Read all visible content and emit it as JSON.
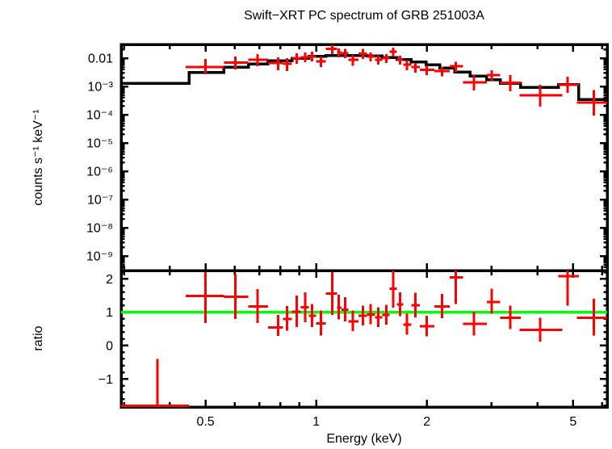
{
  "chart_data": {
    "type": "scatter",
    "title": "Swift−XRT PC spectrum of GRB 251003A",
    "xlabel": "Energy (keV)",
    "xscale": "log",
    "xlim": [
      0.2946,
      6.19
    ],
    "xticks": [
      {
        "value": 0.5,
        "label": "0.5"
      },
      {
        "value": 1,
        "label": "1"
      },
      {
        "value": 2,
        "label": "2"
      },
      {
        "value": 5,
        "label": "5"
      }
    ],
    "xticks_minor": [
      0.3,
      0.4,
      0.6,
      0.7,
      0.8,
      0.9,
      3,
      4,
      6
    ],
    "colors": {
      "data": "#ff0000",
      "model": "#000000",
      "reference_line": "#00ff00",
      "frame": "#000000",
      "background": "#ffffff"
    },
    "panels": [
      {
        "name": "spectrum",
        "ylabel": "counts s⁻¹ keV⁻¹",
        "yscale": "log",
        "ylim": [
          3.06e-10,
          0.0306
        ],
        "yticks": [
          {
            "value": 0.01,
            "label": "0.01"
          },
          {
            "value": 0.001,
            "label": "10⁻³"
          },
          {
            "value": 0.0001,
            "label": "10⁻⁴"
          },
          {
            "value": 1e-05,
            "label": "10⁻⁵"
          },
          {
            "value": 1e-06,
            "label": "10⁻⁶"
          },
          {
            "value": 1e-07,
            "label": "10⁻⁷"
          },
          {
            "value": 1e-08,
            "label": "10⁻⁸"
          },
          {
            "value": 1e-09,
            "label": "10⁻⁹"
          }
        ],
        "model_steps": [
          [
            0.2946,
            0.451,
            0.0013
          ],
          [
            0.451,
            0.561,
            0.0031
          ],
          [
            0.561,
            0.654,
            0.0048
          ],
          [
            0.654,
            0.739,
            0.0063
          ],
          [
            0.739,
            0.859,
            0.0082
          ],
          [
            0.859,
            0.955,
            0.01
          ],
          [
            0.955,
            1.063,
            0.0115
          ],
          [
            1.063,
            1.375,
            0.0125
          ],
          [
            1.375,
            1.513,
            0.0118
          ],
          [
            1.513,
            1.659,
            0.0105
          ],
          [
            1.659,
            1.814,
            0.009
          ],
          [
            1.814,
            1.99,
            0.0073
          ],
          [
            1.99,
            2.17,
            0.0058
          ],
          [
            2.17,
            2.38,
            0.0044
          ],
          [
            2.38,
            2.62,
            0.0032
          ],
          [
            2.62,
            2.91,
            0.0023
          ],
          [
            2.91,
            3.17,
            0.0017
          ],
          [
            3.17,
            3.6,
            0.0013
          ],
          [
            3.6,
            4.56,
            0.00093
          ],
          [
            4.56,
            5.18,
            0.00115
          ],
          [
            5.18,
            6.19,
            0.00034
          ]
        ],
        "points": [
          [
            0.5,
            0.442,
            0.561,
            0.0049,
            0.0027,
            0.0093
          ],
          [
            0.603,
            0.561,
            0.654,
            0.0069,
            0.004,
            0.0114
          ],
          [
            0.693,
            0.654,
            0.739,
            0.0087,
            0.0052,
            0.014
          ],
          [
            0.788,
            0.739,
            0.813,
            0.0067,
            0.0037,
            0.0107
          ],
          [
            0.834,
            0.813,
            0.859,
            0.0063,
            0.0035,
            0.01
          ],
          [
            0.886,
            0.859,
            0.908,
            0.01,
            0.0063,
            0.0148
          ],
          [
            0.934,
            0.908,
            0.955,
            0.0107,
            0.0072,
            0.0158
          ],
          [
            0.975,
            0.955,
            1.0,
            0.0114,
            0.0077,
            0.017
          ],
          [
            1.031,
            1.0,
            1.063,
            0.0077,
            0.0049,
            0.0113
          ],
          [
            1.107,
            1.063,
            1.141,
            0.021,
            0.014,
            0.03
          ],
          [
            1.152,
            1.141,
            1.173,
            0.0158,
            0.0107,
            0.022
          ],
          [
            1.2,
            1.173,
            1.225,
            0.0148,
            0.01,
            0.021
          ],
          [
            1.257,
            1.225,
            1.302,
            0.0087,
            0.0054,
            0.013
          ],
          [
            1.34,
            1.302,
            1.375,
            0.0143,
            0.0094,
            0.021
          ],
          [
            1.405,
            1.375,
            1.446,
            0.0114,
            0.0077,
            0.016
          ],
          [
            1.476,
            1.446,
            1.513,
            0.0087,
            0.0059,
            0.0125
          ],
          [
            1.55,
            1.513,
            1.585,
            0.01,
            0.0067,
            0.014
          ],
          [
            1.62,
            1.585,
            1.659,
            0.017,
            0.0114,
            0.0236
          ],
          [
            1.69,
            1.659,
            1.727,
            0.0087,
            0.0059,
            0.012
          ],
          [
            1.765,
            1.727,
            1.814,
            0.0059,
            0.0037,
            0.0082
          ],
          [
            1.86,
            1.814,
            1.915,
            0.0049,
            0.0031,
            0.0068
          ],
          [
            2.0,
            1.915,
            2.095,
            0.0039,
            0.0025,
            0.0055
          ],
          [
            2.2,
            2.095,
            2.31,
            0.0035,
            0.0023,
            0.005
          ],
          [
            2.4,
            2.31,
            2.51,
            0.0052,
            0.0033,
            0.0074
          ],
          [
            2.69,
            2.51,
            2.91,
            0.0014,
            0.00072,
            0.0025
          ],
          [
            3.0,
            2.91,
            3.17,
            0.0025,
            0.00158,
            0.0037
          ],
          [
            3.37,
            3.17,
            3.6,
            0.00134,
            0.00067,
            0.0025
          ],
          [
            4.07,
            3.58,
            4.68,
            0.00049,
            0.00019,
            0.00115
          ],
          [
            4.83,
            4.56,
            5.18,
            0.00115,
            0.00059,
            0.0022
          ],
          [
            5.69,
            5.12,
            6.19,
            0.00027,
            9.3e-05,
            0.00074
          ]
        ]
      },
      {
        "name": "ratio",
        "ylabel": "ratio",
        "yscale": "linear",
        "ylim": [
          -1.84,
          2.25
        ],
        "yticks": [
          {
            "value": 2,
            "label": "2"
          },
          {
            "value": 1,
            "label": "1"
          },
          {
            "value": 0,
            "label": "0"
          },
          {
            "value": -1,
            "label": "−1"
          }
        ],
        "ytick_minor_step": 0.2,
        "reference_line_y": 1,
        "points": [
          [
            0.37,
            0.2946,
            0.451,
            -1.8,
            -1.84,
            -0.4
          ],
          [
            0.5,
            0.442,
            0.561,
            1.49,
            0.68,
            2.2
          ],
          [
            0.603,
            0.561,
            0.654,
            1.46,
            0.8,
            2.15
          ],
          [
            0.693,
            0.654,
            0.739,
            1.17,
            0.68,
            1.69
          ],
          [
            0.788,
            0.739,
            0.813,
            0.54,
            0.29,
            0.92
          ],
          [
            0.834,
            0.813,
            0.859,
            0.8,
            0.45,
            1.18
          ],
          [
            0.886,
            0.859,
            0.908,
            1.02,
            0.56,
            1.5
          ],
          [
            0.934,
            0.908,
            0.955,
            1.15,
            0.7,
            1.6
          ],
          [
            0.975,
            0.955,
            1.0,
            0.9,
            0.55,
            1.25
          ],
          [
            1.031,
            1.0,
            1.063,
            0.66,
            0.3,
            1.05
          ],
          [
            1.107,
            1.063,
            1.141,
            1.56,
            0.92,
            2.2
          ],
          [
            1.152,
            1.141,
            1.173,
            1.14,
            0.78,
            1.52
          ],
          [
            1.2,
            1.173,
            1.225,
            1.08,
            0.72,
            1.45
          ],
          [
            1.257,
            1.225,
            1.302,
            0.72,
            0.44,
            1.05
          ],
          [
            1.34,
            1.302,
            1.375,
            0.89,
            0.6,
            1.2
          ],
          [
            1.405,
            1.375,
            1.446,
            0.93,
            0.64,
            1.25
          ],
          [
            1.476,
            1.446,
            1.513,
            0.85,
            0.56,
            1.15
          ],
          [
            1.55,
            1.513,
            1.585,
            0.92,
            0.63,
            1.22
          ],
          [
            1.62,
            1.585,
            1.659,
            1.7,
            1.14,
            2.26
          ],
          [
            1.69,
            1.659,
            1.727,
            1.23,
            0.88,
            1.6
          ],
          [
            1.765,
            1.727,
            1.814,
            0.63,
            0.33,
            0.95
          ],
          [
            1.86,
            1.814,
            1.915,
            1.21,
            0.85,
            1.58
          ],
          [
            2.0,
            1.915,
            2.095,
            0.58,
            0.28,
            0.9
          ],
          [
            2.2,
            2.095,
            2.31,
            1.17,
            0.82,
            1.55
          ],
          [
            2.4,
            2.31,
            2.51,
            2.04,
            1.24,
            2.25
          ],
          [
            2.69,
            2.51,
            2.91,
            0.65,
            0.3,
            1.02
          ],
          [
            3.0,
            2.91,
            3.17,
            1.31,
            0.95,
            1.7
          ],
          [
            3.37,
            3.17,
            3.6,
            0.84,
            0.5,
            1.2
          ],
          [
            4.07,
            3.58,
            4.68,
            0.47,
            0.12,
            0.83
          ],
          [
            4.83,
            4.56,
            5.18,
            2.08,
            1.2,
            2.26
          ],
          [
            5.69,
            5.12,
            6.19,
            0.84,
            0.3,
            1.4
          ]
        ]
      }
    ]
  }
}
